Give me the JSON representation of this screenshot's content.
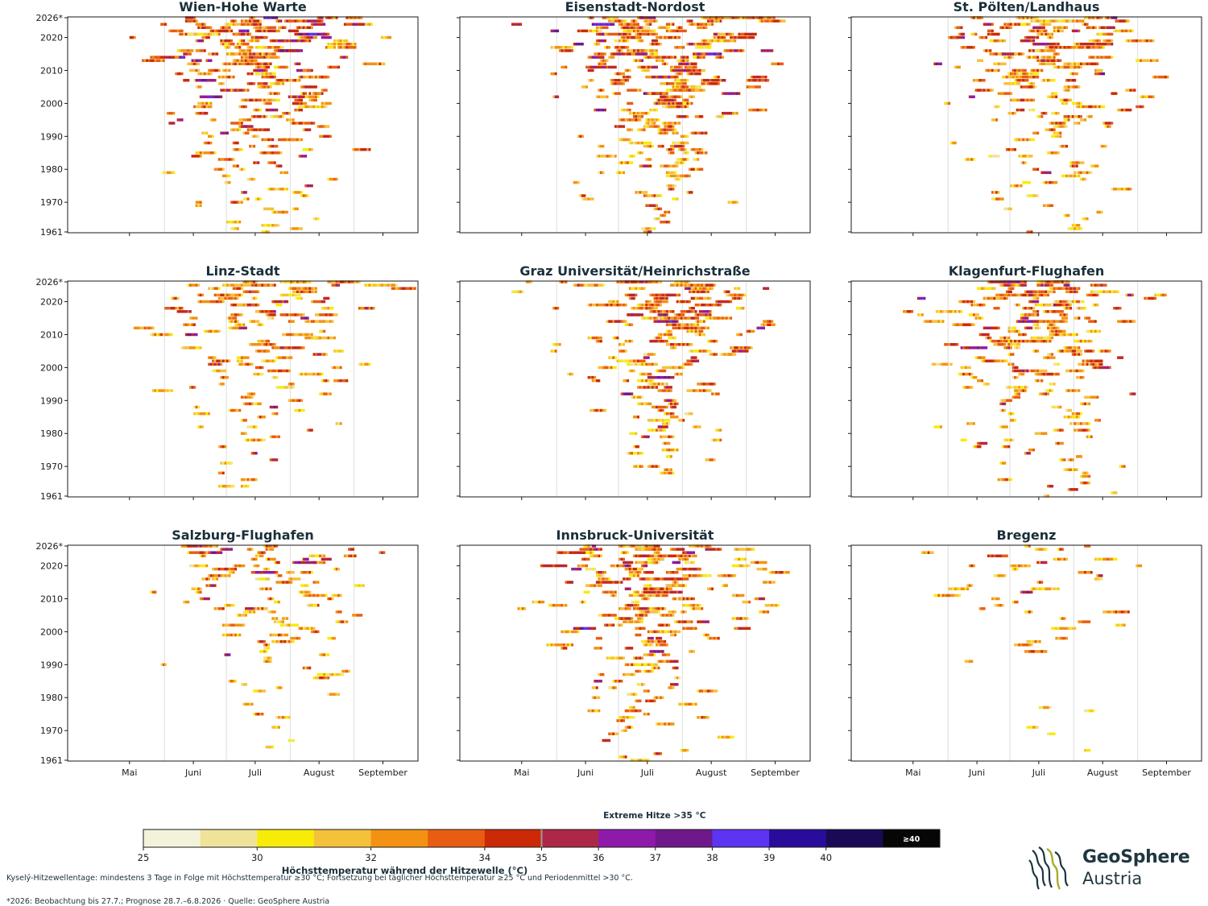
{
  "colors": {
    "scale": [
      "#f3f3dc",
      "#efe39a",
      "#f7ec08",
      "#f5c13a",
      "#f39212",
      "#e85d12",
      "#cc2a06",
      "#ad2848",
      "#8e1aaa",
      "#6e188a",
      "#5c34f2",
      "#2a0c9c",
      "#1a0a56",
      "#060606"
    ],
    "frame": "#1a1a1a",
    "gridline": "#dddddd",
    "title": "#1a2f3a"
  },
  "chart_data": {
    "type": "heatmap",
    "layout_hint": "3x3 small multiples, shared axes",
    "x_axis": {
      "ticks": [
        "Mai",
        "Juni",
        "Juli",
        "August",
        "September"
      ],
      "range": [
        "15. April",
        "2. Oktober"
      ],
      "month_starts": [
        "1. Mai",
        "1. Juni",
        "1. Juli",
        "1. August",
        "1. September"
      ],
      "minor_gridlines": [
        "1. Juni",
        "1. Juli",
        "1. August",
        "1. September"
      ]
    },
    "y_axis": {
      "ticks": [
        "1961",
        "1970",
        "1980",
        "1990",
        "2000",
        "2010",
        "2020",
        "2026*"
      ],
      "range": [
        1961,
        2026
      ]
    },
    "colorbar": {
      "title": "Höchsttemperatur während der Hitzewelle (°C)",
      "ticks": [
        "25",
        "30",
        "32",
        "34",
        "35",
        "36",
        "37",
        "38",
        "39",
        "40"
      ],
      "bounds": [
        25,
        28.5,
        30,
        31,
        32,
        33,
        34,
        35,
        36,
        37,
        38,
        39,
        40,
        41
      ],
      "extreme_label": "Extreme Hitze >35 °C",
      "extreme_threshold": 35,
      "top_label": "≥40"
    },
    "panels": [
      {
        "title": "Wien-Hohe Warte",
        "intensity": 1.0,
        "center_doy": 196,
        "wave_rate": 0.08
      },
      {
        "title": "Eisenstadt-Nordost",
        "intensity": 1.0,
        "center_doy": 198,
        "wave_rate": 0.08
      },
      {
        "title": "St. Pölten/Landhaus",
        "intensity": 0.75,
        "center_doy": 196,
        "wave_rate": 0.065
      },
      {
        "title": "Linz-Stadt",
        "intensity": 0.6,
        "center_doy": 195,
        "wave_rate": 0.05
      },
      {
        "title": "Graz Universität/Heinrichstraße",
        "intensity": 0.75,
        "center_doy": 196,
        "wave_rate": 0.055
      },
      {
        "title": "Klagenfurt-Flughafen",
        "intensity": 0.8,
        "center_doy": 192,
        "wave_rate": 0.065
      },
      {
        "title": "Salzburg-Flughafen",
        "intensity": 0.5,
        "center_doy": 196,
        "wave_rate": 0.045
      },
      {
        "title": "Innsbruck-Universität",
        "intensity": 0.85,
        "center_doy": 196,
        "wave_rate": 0.075
      },
      {
        "title": "Bregenz",
        "intensity": 0.25,
        "center_doy": 196,
        "wave_rate": 0.03
      }
    ]
  },
  "footnotes": {
    "line1": "Kyselý-Hitzewellentage: mindestens 3 Tage in Folge mit Höchsttemperatur ≥30 °C; Fortsetzung bei täglicher Höchsttemperatur ≥25 °C und Periodenmittel >30 °C.",
    "line2": "*2026: Beobachtung bis 27.7.; Prognose 28.7.–6.8.2026 · Quelle: GeoSphere Austria"
  },
  "logo": {
    "name": "GeoSphere",
    "sub": "Austria"
  }
}
